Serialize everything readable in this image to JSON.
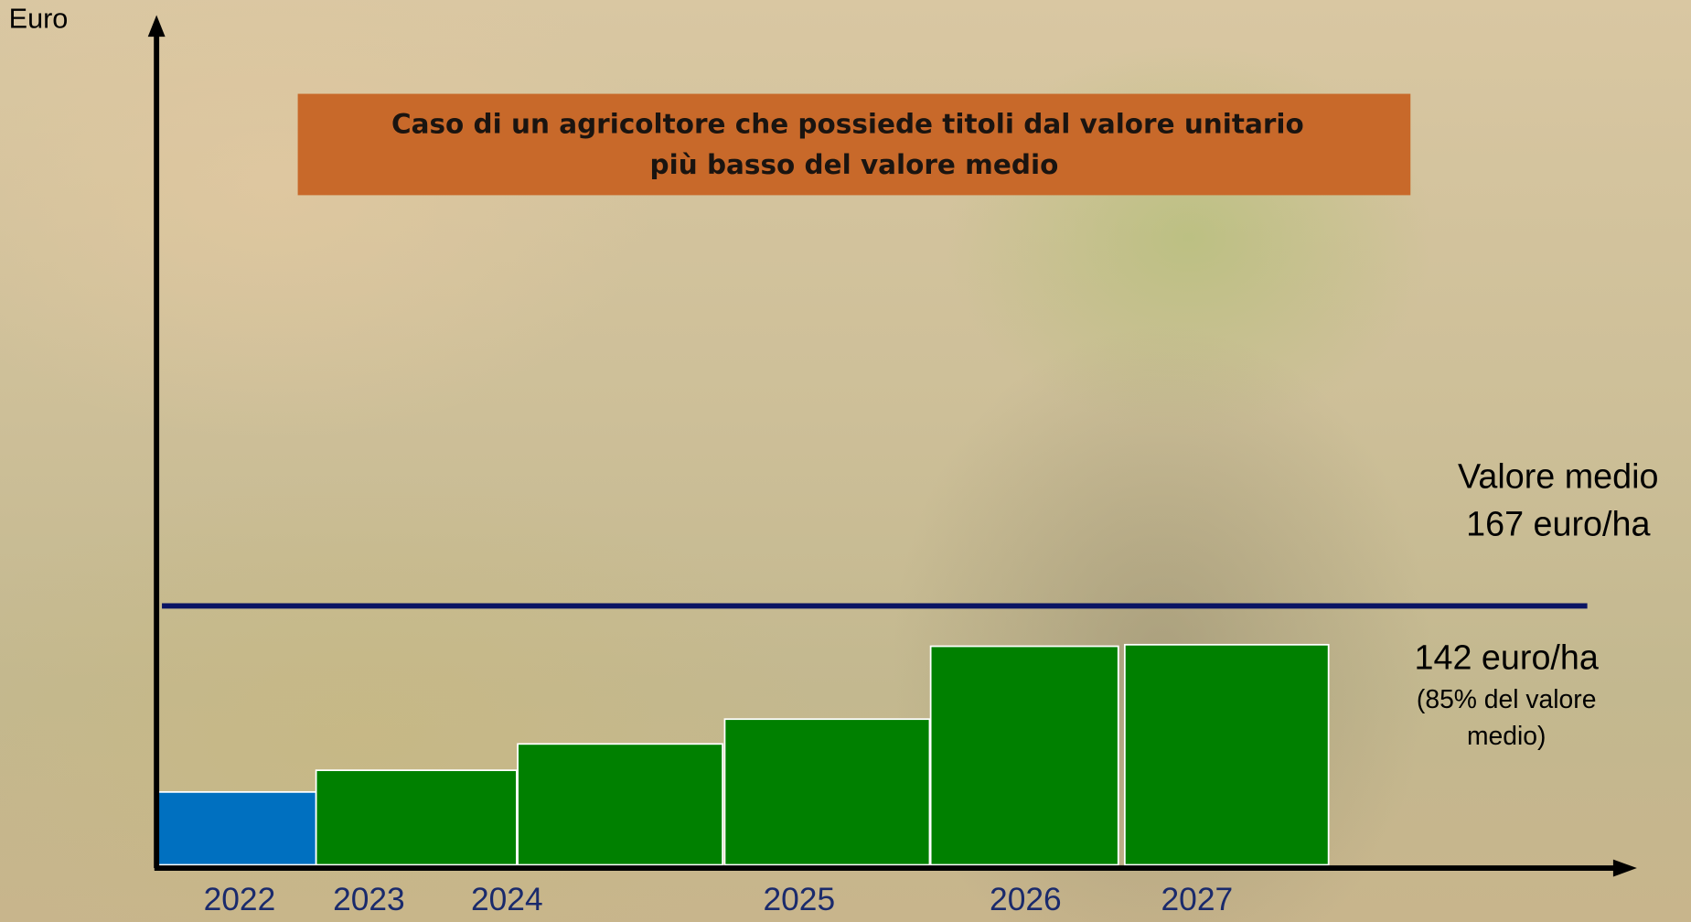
{
  "chart_data": {
    "type": "bar",
    "title": [
      "Caso di un agricoltore che possiede titoli dal valore unitario",
      "più basso del valore medio"
    ],
    "y_label": "Euro",
    "categories": [
      "2022",
      "2023",
      "2024",
      "2025",
      "2026",
      "2027"
    ],
    "values": [
      47,
      61,
      78,
      94,
      141,
      142
    ],
    "colors": [
      "#0070c0",
      "#008000",
      "#008000",
      "#008000",
      "#008000",
      "#008000"
    ],
    "value_labels": [
      null,
      null,
      null,
      null,
      null,
      "142 euro/ha"
    ],
    "note": [
      "(85% del valore",
      "medio)"
    ],
    "reference_line": {
      "name": "Valore medio",
      "value": 167,
      "label": "167 euro/ha",
      "color": "#0a1464"
    },
    "ylim": [
      0,
      537
    ]
  }
}
